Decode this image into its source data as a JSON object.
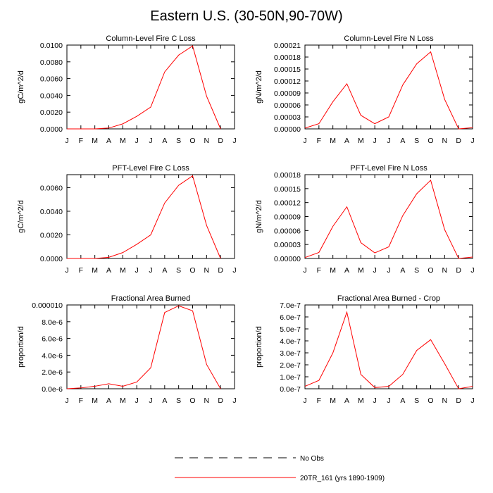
{
  "figure": {
    "title": "Eastern U.S. (30-50N,90-70W)"
  },
  "legend": {
    "entries": [
      {
        "label": "No Obs",
        "color": "#000000",
        "dash": true
      },
      {
        "label": "20TR_161 (yrs 1890-1909)",
        "color": "#ff0000",
        "dash": false
      }
    ]
  },
  "chart_data": [
    {
      "type": "line",
      "title": "Column-Level Fire C Loss",
      "ylabel": "gC/m^2/d",
      "x": [
        "J",
        "F",
        "M",
        "A",
        "M",
        "J",
        "J",
        "A",
        "S",
        "O",
        "N",
        "D",
        "J"
      ],
      "ylim": [
        0,
        0.01
      ],
      "yticks": [
        0,
        0.002,
        0.004,
        0.006,
        0.008,
        0.01
      ],
      "ytick_labels": [
        "0.0000",
        "0.0020",
        "0.0040",
        "0.0060",
        "0.0080",
        "0.0100"
      ],
      "series": [
        {
          "name": "20TR_161 (yrs 1890-1909)",
          "values": [
            0,
            0,
            0,
            0.0001,
            0.0006,
            0.0015,
            0.0026,
            0.0068,
            0.0088,
            0.0099,
            0.0039,
            0,
            null
          ]
        }
      ]
    },
    {
      "type": "line",
      "title": "Column-Level Fire N Loss",
      "ylabel": "gN/m^2/d",
      "x": [
        "J",
        "F",
        "M",
        "A",
        "M",
        "J",
        "J",
        "A",
        "S",
        "O",
        "N",
        "D",
        "J"
      ],
      "ylim": [
        0,
        0.00021
      ],
      "yticks": [
        0,
        3e-05,
        6e-05,
        9e-05,
        0.00012,
        0.00015,
        0.00018,
        0.00021
      ],
      "ytick_labels": [
        "0.00000",
        "0.00003",
        "0.00006",
        "0.00009",
        "0.00012",
        "0.00015",
        "0.00018",
        "0.00021"
      ],
      "series": [
        {
          "name": "20TR_161 (yrs 1890-1909)",
          "values": [
            2e-06,
            1.3e-05,
            6.8e-05,
            0.000113,
            3.4e-05,
            1.3e-05,
            3e-05,
            0.00011,
            0.000163,
            0.000193,
            7.4e-05,
            0,
            3e-06
          ]
        }
      ]
    },
    {
      "type": "line",
      "title": "PFT-Level Fire C Loss",
      "ylabel": "gC/m^2/d",
      "x": [
        "J",
        "F",
        "M",
        "A",
        "M",
        "J",
        "J",
        "A",
        "S",
        "O",
        "N",
        "D",
        "J"
      ],
      "ylim": [
        0,
        0.0071
      ],
      "yticks": [
        0,
        0.002,
        0.004,
        0.006
      ],
      "ytick_labels": [
        "0.0000",
        "0.0020",
        "0.0040",
        "0.0060"
      ],
      "series": [
        {
          "name": "20TR_161 (yrs 1890-1909)",
          "values": [
            0,
            0,
            0,
            0.0001,
            0.0005,
            0.0012,
            0.002,
            0.0047,
            0.0062,
            0.007,
            0.0028,
            0,
            null
          ]
        }
      ]
    },
    {
      "type": "line",
      "title": "PFT-Level Fire N Loss",
      "ylabel": "gN/m^2/d",
      "x": [
        "J",
        "F",
        "M",
        "A",
        "M",
        "J",
        "J",
        "A",
        "S",
        "O",
        "N",
        "D",
        "J"
      ],
      "ylim": [
        0,
        0.00018
      ],
      "yticks": [
        0,
        3e-05,
        6e-05,
        9e-05,
        0.00012,
        0.00015,
        0.00018
      ],
      "ytick_labels": [
        "0.00000",
        "0.00003",
        "0.00006",
        "0.00009",
        "0.00012",
        "0.00015",
        "0.00018"
      ],
      "series": [
        {
          "name": "20TR_161 (yrs 1890-1909)",
          "values": [
            2e-06,
            1.3e-05,
            6.9e-05,
            0.000111,
            3.4e-05,
            1.2e-05,
            2.5e-05,
            9.2e-05,
            0.000139,
            0.000168,
            6.2e-05,
            0,
            3e-06
          ]
        }
      ]
    },
    {
      "type": "line",
      "title": "Fractional Area Burned",
      "ylabel": "proportion/d",
      "x": [
        "J",
        "F",
        "M",
        "A",
        "M",
        "J",
        "J",
        "A",
        "S",
        "O",
        "N",
        "D",
        "J"
      ],
      "ylim": [
        0,
        1e-05
      ],
      "yticks": [
        0,
        2e-06,
        4e-06,
        6e-06,
        8e-06,
        1e-05
      ],
      "ytick_labels": [
        "0.0e-6",
        "2.0e-6",
        "4.0e-6",
        "6.0e-6",
        "8.0e-6",
        "0.000010"
      ],
      "series": [
        {
          "name": "20TR_161 (yrs 1890-1909)",
          "values": [
            0,
            1e-07,
            3e-07,
            6e-07,
            3e-07,
            8e-07,
            2.5e-06,
            9.1e-06,
            9.9e-06,
            9.3e-06,
            2.9e-06,
            0,
            null
          ]
        }
      ]
    },
    {
      "type": "line",
      "title": "Fractional Area Burned - Crop",
      "ylabel": "proportion/d",
      "x": [
        "J",
        "F",
        "M",
        "A",
        "M",
        "J",
        "J",
        "A",
        "S",
        "O",
        "N",
        "D",
        "J"
      ],
      "ylim": [
        0,
        7e-07
      ],
      "yticks": [
        0,
        1e-07,
        2e-07,
        3e-07,
        4e-07,
        5e-07,
        6e-07,
        7e-07
      ],
      "ytick_labels": [
        "0.0e-7",
        "1.0e-7",
        "2.0e-7",
        "3.0e-7",
        "4.0e-7",
        "5.0e-7",
        "6.0e-7",
        "7.0e-7"
      ],
      "series": [
        {
          "name": "20TR_161 (yrs 1890-1909)",
          "values": [
            2e-08,
            7e-08,
            3e-07,
            6.4e-07,
            1.2e-07,
            1e-08,
            2e-08,
            1.2e-07,
            3.2e-07,
            4.1e-07,
            2.1e-07,
            0,
            2e-08
          ]
        }
      ]
    }
  ]
}
